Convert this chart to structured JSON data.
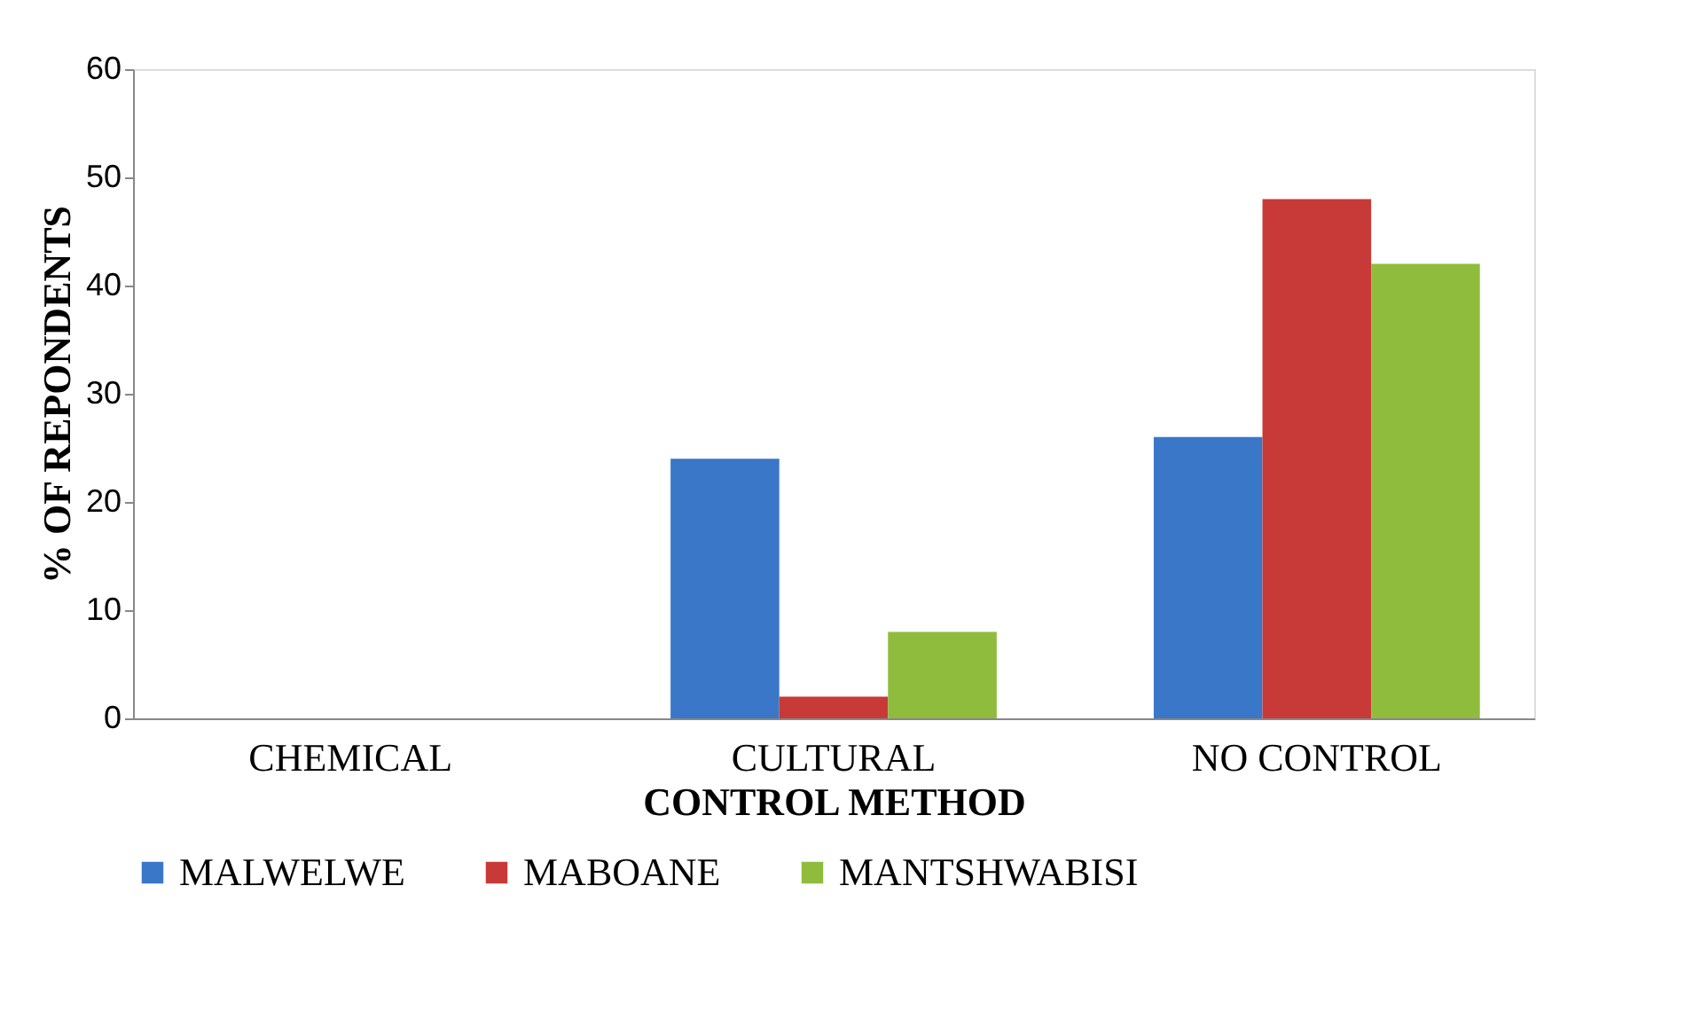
{
  "chart_data": {
    "type": "bar",
    "xlabel": "CONTROL METHOD",
    "ylabel": "% OF REPONDENTS",
    "categories": [
      "CHEMICAL",
      "CULTURAL",
      "NO CONTROL"
    ],
    "series": [
      {
        "name": "MALWELWE",
        "color": "#3a77c8",
        "values": [
          0,
          24,
          26
        ]
      },
      {
        "name": "MABOANE",
        "color": "#c83a38",
        "values": [
          0,
          2,
          48
        ]
      },
      {
        "name": "MANTSHWABISI",
        "color": "#8fbc3c",
        "values": [
          0,
          8,
          42
        ]
      }
    ],
    "ylim": [
      0,
      60
    ],
    "yticks": [
      0,
      10,
      20,
      30,
      40,
      50,
      60
    ],
    "grid": false,
    "legend": "bottom"
  }
}
